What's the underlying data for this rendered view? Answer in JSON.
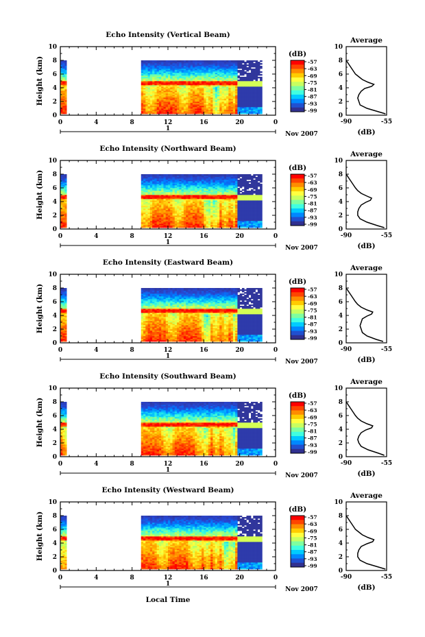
{
  "figure": {
    "xlabel": "Local Time",
    "date_label": "Nov 2007",
    "day_label": "1",
    "colorbar_unit": "(dB)",
    "colorbar_ticks": [
      "-57",
      "-63",
      "-69",
      "-75",
      "-81",
      "-87",
      "-93",
      "-99"
    ],
    "colorbar_colors": [
      "#ff0000",
      "#ff4500",
      "#ff8c00",
      "#ffcc00",
      "#ffff40",
      "#c8ff60",
      "#7fffa0",
      "#40ffe0",
      "#00ccff",
      "#0088ff",
      "#2050d0",
      "#303090"
    ],
    "avg_title": "Average",
    "avg_xlabel": "(dB)"
  },
  "chart_data": [
    {
      "type": "heatmap",
      "title": "Echo Intensity (Vertical Beam)",
      "ylabel": "Height (km)",
      "x_ticks": [
        "0",
        "4",
        "8",
        "12",
        "16",
        "20",
        "0"
      ],
      "y_ticks": [
        "0",
        "2",
        "4",
        "6",
        "8",
        "10"
      ],
      "xlim": [
        0,
        24
      ],
      "ylim": [
        0,
        10
      ],
      "coverage": [
        {
          "t_start": 0,
          "t_end": 0.7,
          "top_km": 8
        },
        {
          "t_start": 9,
          "t_end": 22.5,
          "top_km": 8
        }
      ],
      "melting_layer_km": 4.6,
      "avg_profile": {
        "title": "Average",
        "xlabel": "(dB)",
        "x_ticks": [
          "-90",
          "-55"
        ],
        "xlim": [
          -90,
          -55
        ],
        "y_ticks": [
          "0",
          "2",
          "4",
          "6",
          "8",
          "10"
        ],
        "ylim": [
          0,
          10
        ],
        "height": [
          0.2,
          0.5,
          1.0,
          1.5,
          2.0,
          2.5,
          3.0,
          3.5,
          3.9,
          4.2,
          4.5,
          4.8,
          5.2,
          5.6,
          6.0,
          6.5,
          7.0,
          7.5,
          8.0
        ],
        "db": [
          -56,
          -62,
          -72,
          -78,
          -79,
          -80,
          -79,
          -77,
          -74,
          -68,
          -66,
          -71,
          -76,
          -79,
          -82,
          -84,
          -86,
          -88,
          -90
        ]
      }
    },
    {
      "type": "heatmap",
      "title": "Echo Intensity (Northward Beam)",
      "ylabel": "Height (km)",
      "x_ticks": [
        "0",
        "4",
        "8",
        "12",
        "16",
        "20",
        "0"
      ],
      "y_ticks": [
        "0",
        "2",
        "4",
        "6",
        "8",
        "10"
      ],
      "xlim": [
        0,
        24
      ],
      "ylim": [
        0,
        10
      ],
      "coverage": [
        {
          "t_start": 0,
          "t_end": 0.7,
          "top_km": 8
        },
        {
          "t_start": 9,
          "t_end": 22.5,
          "top_km": 8
        }
      ],
      "melting_layer_km": 4.6,
      "avg_profile": {
        "title": "Average",
        "xlabel": "(dB)",
        "x_ticks": [
          "-90",
          "-55"
        ],
        "xlim": [
          -90,
          -55
        ],
        "y_ticks": [
          "0",
          "2",
          "4",
          "6",
          "8",
          "10"
        ],
        "ylim": [
          0,
          10
        ],
        "height": [
          0.2,
          0.5,
          1.0,
          1.5,
          2.0,
          2.5,
          3.0,
          3.5,
          3.9,
          4.2,
          4.5,
          4.8,
          5.2,
          5.6,
          6.0,
          6.5,
          7.0,
          7.5,
          8.0
        ],
        "db": [
          -57,
          -63,
          -72,
          -78,
          -80,
          -80,
          -79,
          -77,
          -73,
          -69,
          -68,
          -72,
          -77,
          -80,
          -82,
          -84,
          -86,
          -88,
          -90
        ]
      }
    },
    {
      "type": "heatmap",
      "title": "Echo Intensity (Eastward Beam)",
      "ylabel": "Height (km)",
      "x_ticks": [
        "0",
        "4",
        "8",
        "12",
        "16",
        "20",
        "0"
      ],
      "y_ticks": [
        "0",
        "2",
        "4",
        "6",
        "8",
        "10"
      ],
      "xlim": [
        0,
        24
      ],
      "ylim": [
        0,
        10
      ],
      "coverage": [
        {
          "t_start": 0,
          "t_end": 0.7,
          "top_km": 8
        },
        {
          "t_start": 9,
          "t_end": 22.5,
          "top_km": 8
        }
      ],
      "melting_layer_km": 4.6,
      "avg_profile": {
        "title": "Average",
        "xlabel": "(dB)",
        "x_ticks": [
          "-90",
          "-55"
        ],
        "xlim": [
          -90,
          -55
        ],
        "y_ticks": [
          "0",
          "2",
          "4",
          "6",
          "8",
          "10"
        ],
        "ylim": [
          0,
          10
        ],
        "height": [
          0.2,
          0.5,
          1.0,
          1.5,
          2.0,
          2.5,
          3.0,
          3.5,
          3.9,
          4.2,
          4.5,
          4.8,
          5.2,
          5.6,
          6.0,
          6.5,
          7.0,
          7.5,
          8.0
        ],
        "db": [
          -58,
          -64,
          -72,
          -76,
          -77,
          -78,
          -77,
          -76,
          -72,
          -68,
          -67,
          -72,
          -77,
          -80,
          -82,
          -84,
          -86,
          -88,
          -90
        ]
      }
    },
    {
      "type": "heatmap",
      "title": "Echo Intensity (Southward Beam)",
      "ylabel": "Height (km)",
      "x_ticks": [
        "0",
        "4",
        "8",
        "12",
        "16",
        "20",
        "0"
      ],
      "y_ticks": [
        "0",
        "2",
        "4",
        "6",
        "8",
        "10"
      ],
      "xlim": [
        0,
        24
      ],
      "ylim": [
        0,
        10
      ],
      "coverage": [
        {
          "t_start": 0,
          "t_end": 0.7,
          "top_km": 8
        },
        {
          "t_start": 9,
          "t_end": 22.5,
          "top_km": 8
        }
      ],
      "melting_layer_km": 4.6,
      "avg_profile": {
        "title": "Average",
        "xlabel": "(dB)",
        "x_ticks": [
          "-90",
          "-55"
        ],
        "xlim": [
          -90,
          -55
        ],
        "y_ticks": [
          "0",
          "2",
          "4",
          "6",
          "8",
          "10"
        ],
        "ylim": [
          0,
          10
        ],
        "height": [
          0.2,
          0.5,
          1.0,
          1.5,
          2.0,
          2.5,
          3.0,
          3.5,
          3.9,
          4.2,
          4.5,
          4.8,
          5.2,
          5.6,
          6.0,
          6.5,
          7.0,
          7.5,
          8.0
        ],
        "db": [
          -57,
          -62,
          -71,
          -77,
          -79,
          -80,
          -79,
          -77,
          -73,
          -68,
          -67,
          -72,
          -77,
          -80,
          -82,
          -84,
          -86,
          -88,
          -90
        ]
      }
    },
    {
      "type": "heatmap",
      "title": "Echo Intensity (Westward Beam)",
      "ylabel": "Height (km)",
      "x_ticks": [
        "0",
        "4",
        "8",
        "12",
        "16",
        "20",
        "0"
      ],
      "y_ticks": [
        "0",
        "2",
        "4",
        "6",
        "8",
        "10"
      ],
      "xlim": [
        0,
        24
      ],
      "ylim": [
        0,
        10
      ],
      "coverage": [
        {
          "t_start": 0,
          "t_end": 0.7,
          "top_km": 8
        },
        {
          "t_start": 9,
          "t_end": 22.5,
          "top_km": 8
        }
      ],
      "melting_layer_km": 4.6,
      "avg_profile": {
        "title": "Average",
        "xlabel": "(dB)",
        "x_ticks": [
          "-90",
          "-55"
        ],
        "xlim": [
          -90,
          -55
        ],
        "y_ticks": [
          "0",
          "2",
          "4",
          "6",
          "8",
          "10"
        ],
        "ylim": [
          0,
          10
        ],
        "height": [
          0.2,
          0.5,
          1.0,
          1.5,
          2.0,
          2.5,
          3.0,
          3.5,
          3.9,
          4.2,
          4.5,
          4.8,
          5.2,
          5.6,
          6.0,
          6.5,
          7.0,
          7.5,
          8.0
        ],
        "db": [
          -56,
          -62,
          -72,
          -78,
          -80,
          -80,
          -79,
          -77,
          -72,
          -67,
          -66,
          -71,
          -76,
          -79,
          -82,
          -84,
          -86,
          -88,
          -90
        ]
      }
    }
  ]
}
